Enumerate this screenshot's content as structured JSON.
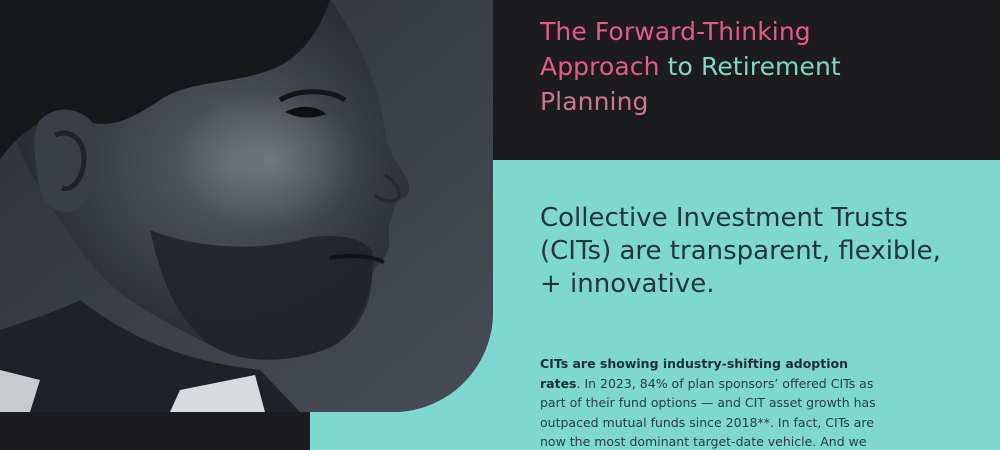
{
  "hero": {
    "title_part1": "The Forward-Thinking",
    "title_part2": "Approach",
    "title_part3": "to Retirement",
    "title_part4": "Planning"
  },
  "section": {
    "headline": "Collective Investment Trusts (CITs) are transparent, flexible, + innovative.",
    "body_bold": "CITs are showing industry-shifting adoption rates",
    "body_rest": ". In 2023, 84% of plan sponsors’ offered CITs as part of their fund options — and CIT asset growth has outpaced mutual funds since 2018**. In fact, CITs are now the most dominant target-date vehicle. And we don’t see that trend slowing down."
  },
  "image": {
    "subject": "portrait-photo"
  },
  "colors": {
    "background": "#1c1b1d",
    "teal_panel": "#7ed8cf",
    "title_pink": "#e45c86",
    "title_teal": "#7fd6cc",
    "text_dark": "#24353c"
  }
}
